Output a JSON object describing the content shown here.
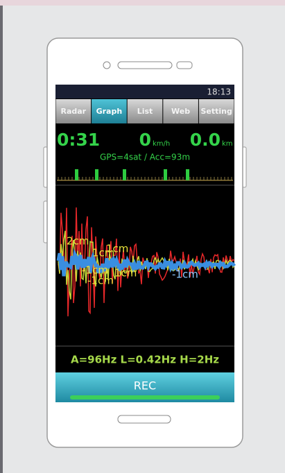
{
  "status_bar": {
    "time": "18:13"
  },
  "tabs": [
    "Radar",
    "Graph",
    "List",
    "Web",
    "Setting"
  ],
  "info": {
    "elapsed": "0:31",
    "speed": "0",
    "speed_unit": "km/h",
    "distance": "0.0",
    "distance_unit": "km",
    "gps": "GPS=4sat / Acc=93m"
  },
  "graph": {
    "labels": [
      {
        "text": "2cm"
      },
      {
        "text": "1cm"
      },
      {
        "text": "1cm"
      },
      {
        "text": "-1cm"
      },
      {
        "text": "-1cm"
      },
      {
        "text": "1cm"
      },
      {
        "text": "-1cm"
      }
    ]
  },
  "footer": {
    "filters": "A=96Hz L=0.42Hz H=2Hz",
    "button": "REC"
  }
}
